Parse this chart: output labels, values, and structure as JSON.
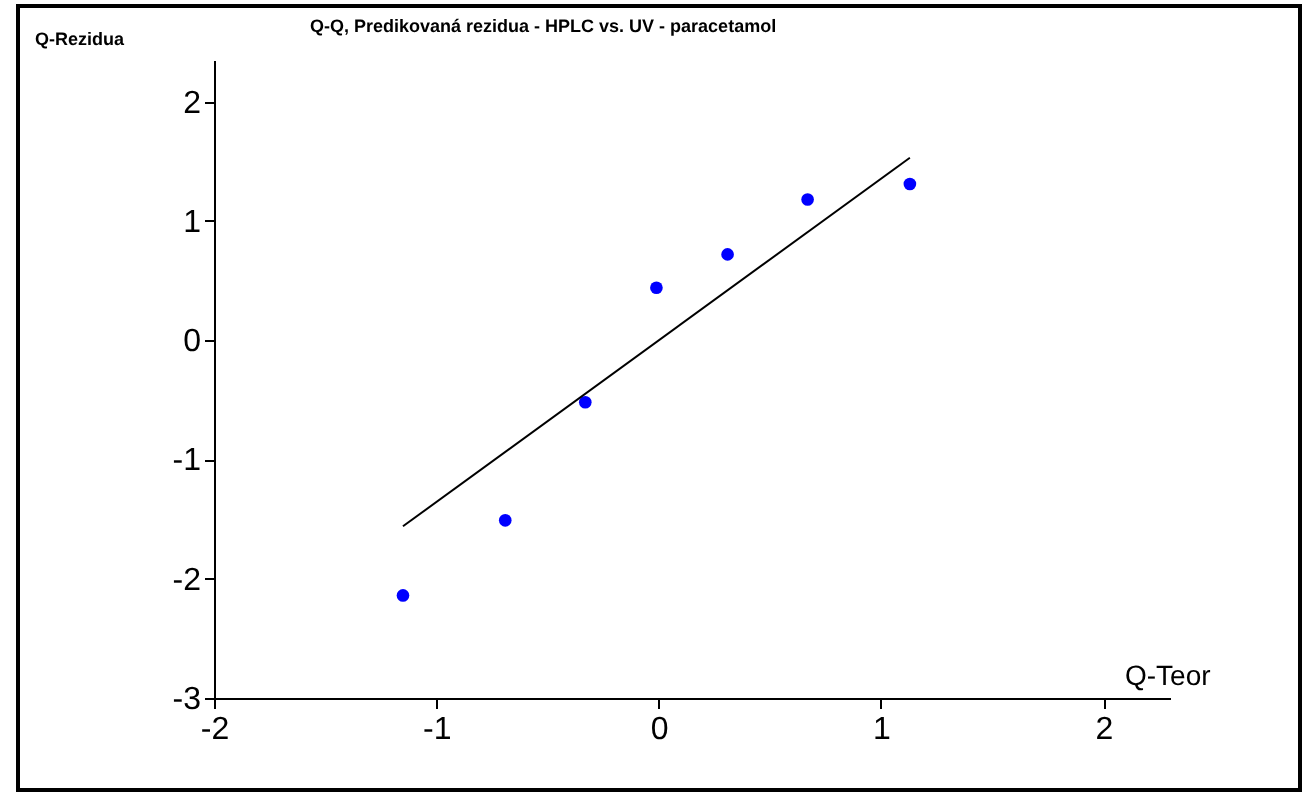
{
  "chart_data": {
    "type": "scatter",
    "title": "Q-Q, Predikovaná rezidua - HPLC vs. UV - paracetamol",
    "xlabel": "Q-Teor",
    "ylabel": "Q-Rezidua",
    "xlim": [
      -2,
      2.3
    ],
    "ylim": [
      -3,
      2.35
    ],
    "xticks": [
      -2,
      -1,
      0,
      1,
      2
    ],
    "yticks": [
      -3,
      -2,
      -1,
      0,
      1,
      2
    ],
    "grid": false,
    "series": [
      {
        "marker": "circle",
        "color": "#0000ff",
        "x": [
          -1.15,
          -0.69,
          -0.33,
          -0.01,
          0.31,
          0.67,
          1.13
        ],
        "values": [
          -2.14,
          -1.51,
          -0.52,
          0.44,
          0.72,
          1.18,
          1.31
        ]
      },
      {
        "type": "line",
        "color": "#000000",
        "x": [
          -1.15,
          1.13
        ],
        "values": [
          -1.56,
          1.53
        ]
      }
    ]
  }
}
